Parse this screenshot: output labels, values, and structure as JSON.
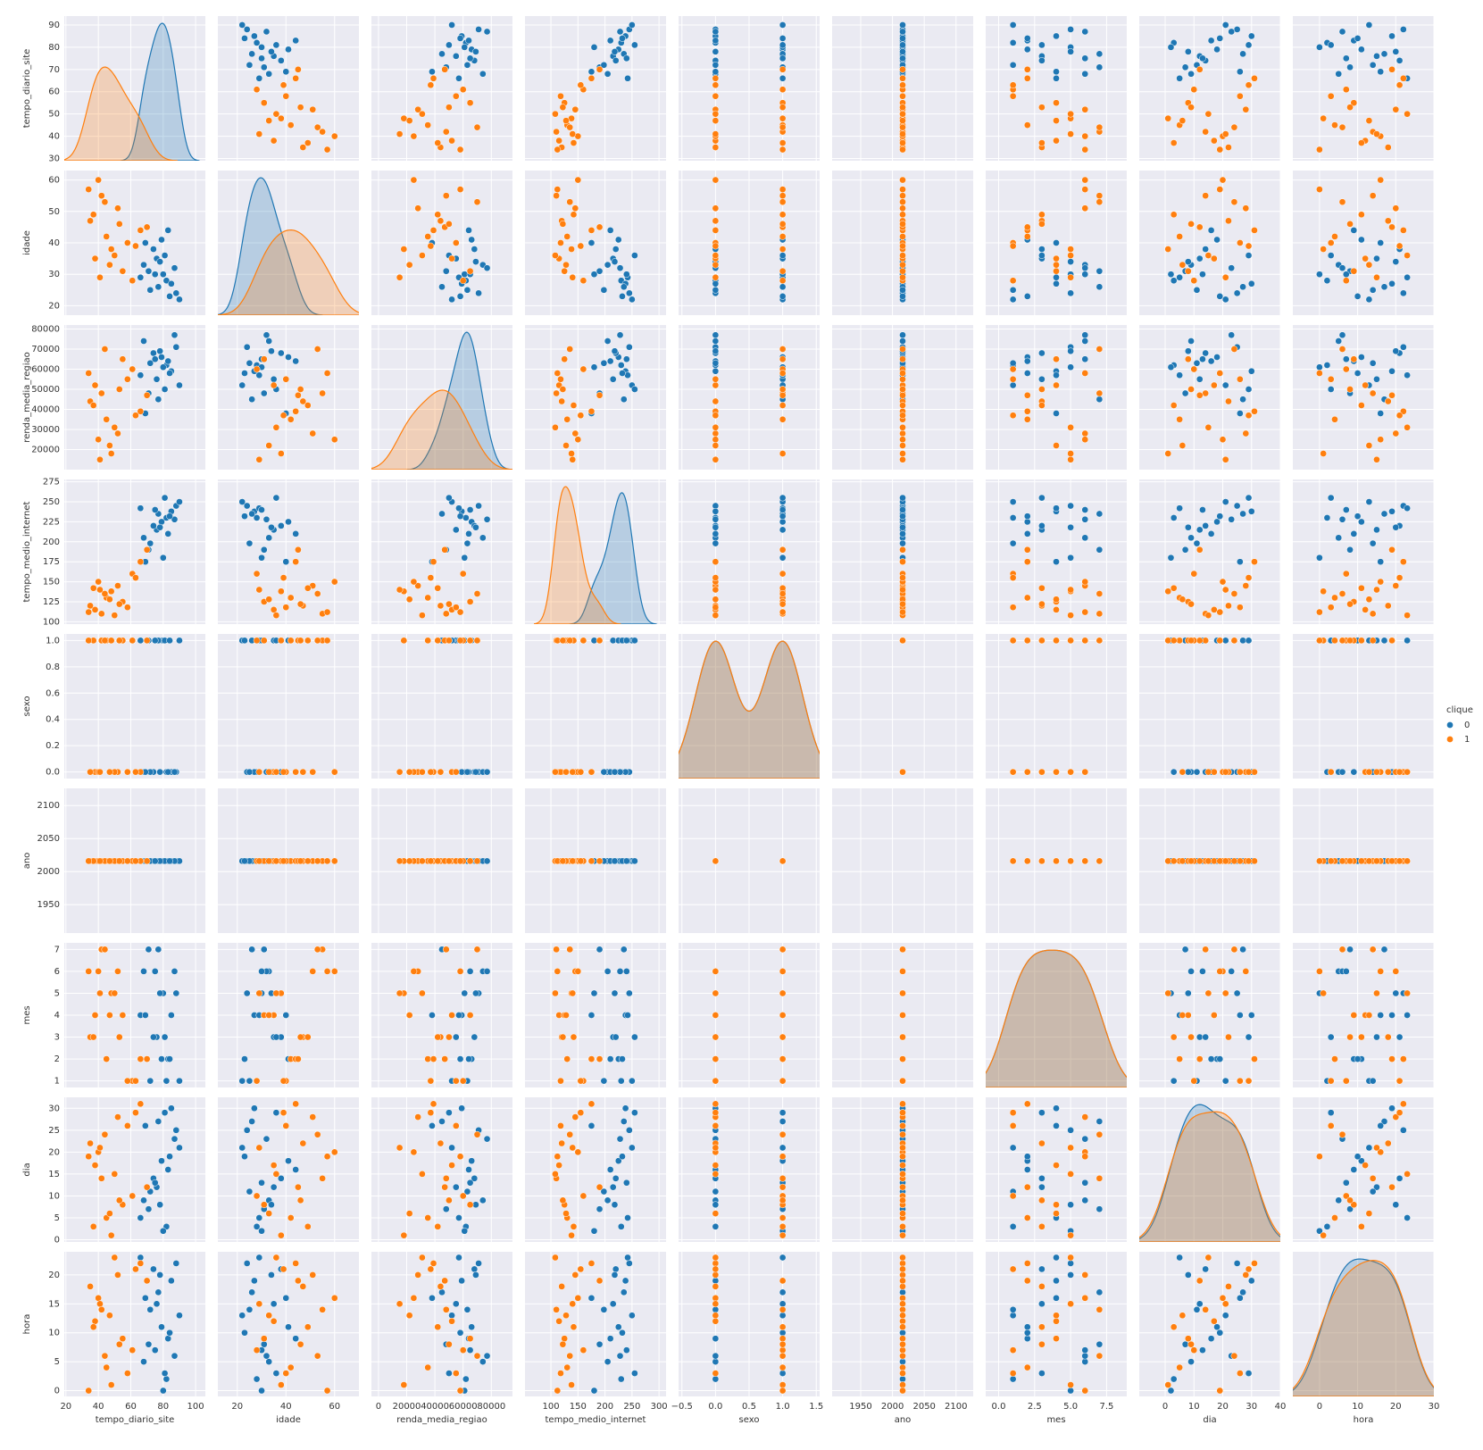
{
  "chart_data": {
    "type": "pairplot",
    "legend": {
      "title": "clique",
      "position": "right"
    },
    "variables": [
      {
        "name": "tempo_diario_site",
        "xlim": [
          19,
          106
        ],
        "xticks": [
          20,
          40,
          60,
          80,
          100
        ],
        "ylim": [
          29,
          94
        ],
        "yticks": [
          30,
          40,
          50,
          60,
          70,
          80,
          90
        ]
      },
      {
        "name": "idade",
        "xlim": [
          12,
          70
        ],
        "xticks": [
          20,
          40,
          60
        ],
        "ylim": [
          17,
          63
        ],
        "yticks": [
          20,
          30,
          40,
          50,
          60
        ]
      },
      {
        "name": "renda_media_regiao",
        "xlim": [
          -5000,
          95000
        ],
        "xticks": [
          0,
          20000,
          40000,
          60000,
          80000
        ],
        "ylim": [
          10000,
          82000
        ],
        "yticks": [
          20000,
          30000,
          40000,
          50000,
          60000,
          70000,
          80000
        ]
      },
      {
        "name": "tempo_medio_internet",
        "xlim": [
          52,
          313
        ],
        "xticks": [
          100,
          150,
          200,
          250,
          300
        ],
        "ylim": [
          97,
          278
        ],
        "yticks": [
          100,
          125,
          150,
          175,
          200,
          225,
          250,
          275
        ]
      },
      {
        "name": "sexo",
        "xlim": [
          -0.55,
          1.55
        ],
        "xticks": [
          {
            "value": -0.5,
            "label": "−0.5"
          },
          {
            "value": 0,
            "label": "0.0"
          },
          0.5,
          {
            "value": 1,
            "label": "1.0"
          },
          1.5
        ],
        "ylim": [
          -0.05,
          1.05
        ],
        "yticks": [
          {
            "value": 0,
            "label": "0.0"
          },
          0.2,
          0.4,
          0.6,
          0.8,
          {
            "value": 1,
            "label": "1.0"
          }
        ]
      },
      {
        "name": "ano",
        "xlim": [
          1905,
          2127
        ],
        "xticks": [
          1950,
          2000,
          2050,
          2100
        ],
        "ylim": [
          1907,
          2126
        ],
        "yticks": [
          1950,
          2000,
          2050,
          2100
        ]
      },
      {
        "name": "mes",
        "xlim": [
          -0.9,
          8.9
        ],
        "xticks": [
          {
            "value": 0,
            "label": "0.0"
          },
          2.5,
          {
            "value": 5,
            "label": "5.0"
          },
          7.5
        ],
        "ylim": [
          0.7,
          7.3
        ],
        "yticks": [
          1,
          2,
          3,
          4,
          5,
          6,
          7
        ]
      },
      {
        "name": "dia",
        "xlim": [
          -9,
          40
        ],
        "xticks": [
          0,
          10,
          20,
          30,
          40
        ],
        "ylim": [
          -0.5,
          32.5
        ],
        "yticks": [
          0,
          5,
          10,
          15,
          20,
          25,
          30
        ]
      },
      {
        "name": "hora",
        "xlim": [
          -7,
          30
        ],
        "xticks": [
          0,
          10,
          20,
          30
        ],
        "ylim": [
          -1,
          24
        ],
        "yticks": [
          0,
          5,
          10,
          15,
          20
        ]
      }
    ],
    "series": [
      {
        "name": "0",
        "color": "#1f77b4",
        "values": [
          [
            82,
            76,
            88,
            71,
            79,
            85,
            68,
            90,
            74,
            80,
            77,
            83,
            66,
            87,
            72,
            81,
            78,
            84,
            69,
            75
          ],
          [
            28,
            35,
            24,
            31,
            41,
            27,
            33,
            22,
            38,
            30,
            26,
            44,
            29,
            32,
            25,
            36,
            34,
            23,
            40,
            30
          ],
          [
            62000,
            55000,
            71000,
            48000,
            66000,
            59000,
            74000,
            52000,
            68000,
            61000,
            45000,
            64000,
            57000,
            77000,
            63000,
            50000,
            69000,
            58000,
            38000,
            65000
          ],
          [
            230,
            215,
            245,
            190,
            225,
            238,
            205,
            250,
            220,
            180,
            235,
            210,
            242,
            228,
            198,
            255,
            218,
            232,
            175,
            240
          ],
          [
            0,
            1,
            0,
            1,
            1,
            0,
            0,
            1,
            0,
            1,
            1,
            0,
            1,
            0,
            0,
            1,
            0,
            1,
            0,
            1
          ],
          [
            2016,
            2016,
            2016,
            2016,
            2016,
            2016,
            2016,
            2016,
            2016,
            2016,
            2016,
            2016,
            2016,
            2016,
            2016,
            2016,
            2016,
            2016,
            2016,
            2016
          ],
          [
            1,
            3,
            5,
            7,
            2,
            4,
            6,
            1,
            3,
            5,
            7,
            2,
            4,
            6,
            1,
            3,
            5,
            2,
            4,
            6
          ],
          [
            3,
            12,
            25,
            7,
            18,
            30,
            9,
            21,
            14,
            2,
            27,
            16,
            5,
            23,
            11,
            29,
            8,
            19,
            26,
            13
          ],
          [
            2,
            15,
            22,
            8,
            11,
            19,
            5,
            13,
            21,
            0,
            17,
            9,
            23,
            6,
            14,
            3,
            20,
            10,
            16,
            7
          ]
        ]
      },
      {
        "name": "1",
        "color": "#ff7f0e",
        "values": [
          [
            45,
            38,
            52,
            61,
            35,
            48,
            42,
            66,
            55,
            40,
            58,
            37,
            50,
            44,
            70,
            47,
            34,
            63,
            53,
            41
          ],
          [
            42,
            35,
            51,
            28,
            47,
            38,
            55,
            44,
            31,
            60,
            40,
            49,
            36,
            53,
            45,
            33,
            57,
            39,
            46,
            29
          ],
          [
            35000,
            52000,
            28000,
            60000,
            44000,
            18000,
            48000,
            39000,
            65000,
            25000,
            55000,
            42000,
            31000,
            70000,
            47000,
            22000,
            58000,
            37000,
            50000,
            15000
          ],
          [
            130,
            115,
            145,
            160,
            120,
            138,
            110,
            175,
            125,
            150,
            118,
            142,
            108,
            135,
            190,
            128,
            112,
            155,
            122,
            140
          ],
          [
            1,
            0,
            0,
            1,
            0,
            1,
            1,
            0,
            1,
            0,
            0,
            1,
            0,
            1,
            1,
            0,
            1,
            0,
            1,
            0
          ],
          [
            2016,
            2016,
            2016,
            2016,
            2016,
            2016,
            2016,
            2016,
            2016,
            2016,
            2016,
            2016,
            2016,
            2016,
            2016,
            2016,
            2016,
            2016,
            2016,
            2016
          ],
          [
            2,
            4,
            6,
            1,
            3,
            5,
            7,
            2,
            4,
            6,
            1,
            3,
            5,
            7,
            2,
            4,
            6,
            1,
            3,
            5
          ],
          [
            5,
            17,
            28,
            10,
            22,
            1,
            14,
            31,
            8,
            20,
            26,
            3,
            15,
            24,
            12,
            6,
            19,
            29,
            9,
            21
          ],
          [
            4,
            12,
            20,
            7,
            18,
            1,
            14,
            22,
            9,
            16,
            3,
            11,
            23,
            6,
            19,
            13,
            0,
            21,
            8,
            15
          ]
        ]
      }
    ]
  }
}
